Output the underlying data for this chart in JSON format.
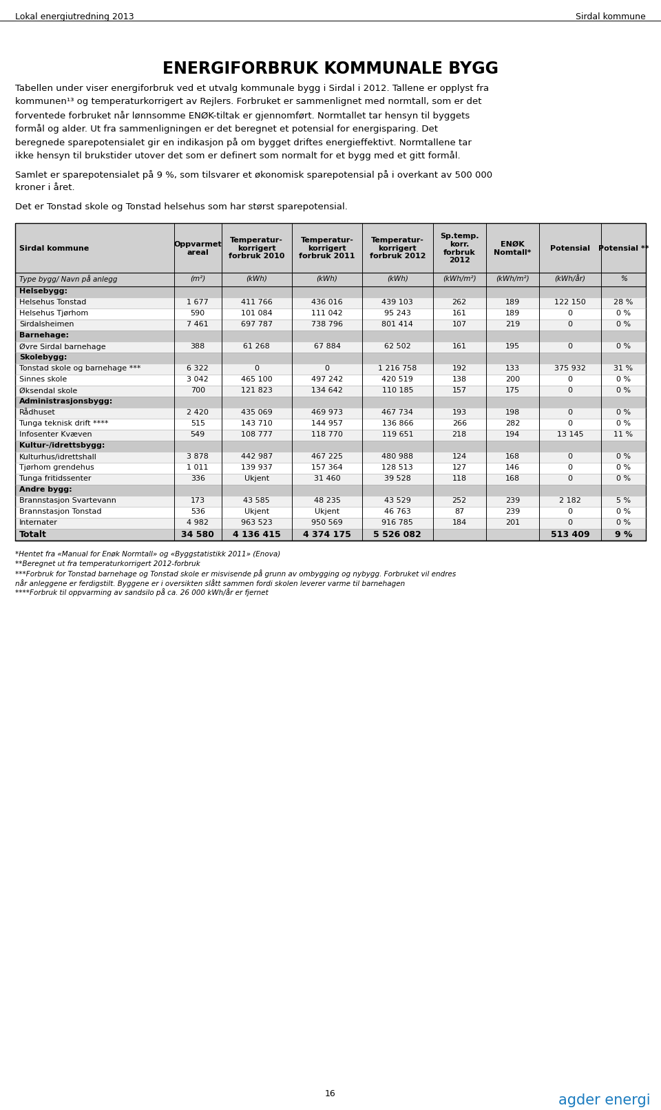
{
  "header_left": "Lokal energiutredning 2013",
  "header_right": "Sirdal kommune",
  "main_title": "ENERGIFORBRUK KOMMUNALE BYGG",
  "body_text_lines": [
    "Tabellen under viser energiforbruk ved et utvalg kommunale bygg i Sirdal i 2012. Tallene er opplyst fra",
    "kommunen¹³ og temperaturkorrigert av Rejlers. Forbruket er sammenlignet med normtall, som er det",
    "forventede forbruket når lønnsomme ENØK-tiltak er gjennomført. Normtallet tar hensyn til byggets",
    "formål og alder. Ut fra sammenligningen er det beregnet et potensial for energisparing. Det",
    "beregnede sparepotensialet gir en indikasjon på om bygget driftes energieffektivt. Normtallene tar",
    "ikke hensyn til brukstider utover det som er definert som normalt for et bygg med et gitt formål."
  ],
  "body_text2_lines": [
    "Samlet er sparepotensialet på 9 %, som tilsvarer et økonomisk sparepotensial på i overkant av 500 000",
    "kroner i året."
  ],
  "body_text3": "Det er Tonstad skole og Tonstad helsehus som har størst sparepotensial.",
  "col_headers_main": [
    "Sirdal kommune",
    "Oppvarmet\nareal",
    "Temperatur-\nkorrigert\nforbruk 2010",
    "Temperatur-\nkorrigert\nforbruk 2011",
    "Temperatur-\nkorrigert\nforbruk 2012",
    "Sp.temp.\nkorr.\nforbruk\n2012",
    "ENØK\nNomtall*",
    "Potensial",
    "Potensial **"
  ],
  "col_headers_sub": [
    "Type bygg/ Navn på anlegg",
    "(m²)",
    "(kWh)",
    "(kWh)",
    "(kWh)",
    "(kWh/m²)",
    "(kWh/m²)",
    "(kWh/år)",
    "%"
  ],
  "sections": [
    {
      "section_name": "Helsebygg:",
      "rows": [
        [
          "Helsehus Tonstad",
          "1 677",
          "411 766",
          "436 016",
          "439 103",
          "262",
          "189",
          "122 150",
          "28 %"
        ],
        [
          "Helsehus Tjørhom",
          "590",
          "101 084",
          "111 042",
          "95 243",
          "161",
          "189",
          "0",
          "0 %"
        ],
        [
          "Sirdalsheimen",
          "7 461",
          "697 787",
          "738 796",
          "801 414",
          "107",
          "219",
          "0",
          "0 %"
        ]
      ]
    },
    {
      "section_name": "Barnehage:",
      "rows": [
        [
          "Øvre Sirdal barnehage",
          "388",
          "61 268",
          "67 884",
          "62 502",
          "161",
          "195",
          "0",
          "0 %"
        ]
      ]
    },
    {
      "section_name": "Skolebygg:",
      "rows": [
        [
          "Tonstad skole og barnehage ***",
          "6 322",
          "0",
          "0",
          "1 216 758",
          "192",
          "133",
          "375 932",
          "31 %"
        ],
        [
          "Sinnes skole",
          "3 042",
          "465 100",
          "497 242",
          "420 519",
          "138",
          "200",
          "0",
          "0 %"
        ],
        [
          "Øksendal skole",
          "700",
          "121 823",
          "134 642",
          "110 185",
          "157",
          "175",
          "0",
          "0 %"
        ]
      ]
    },
    {
      "section_name": "Administrasjonsbygg:",
      "rows": [
        [
          "Rådhuset",
          "2 420",
          "435 069",
          "469 973",
          "467 734",
          "193",
          "198",
          "0",
          "0 %"
        ],
        [
          "Tunga teknisk drift ****",
          "515",
          "143 710",
          "144 957",
          "136 866",
          "266",
          "282",
          "0",
          "0 %"
        ],
        [
          "Infosenter Kvæven",
          "549",
          "108 777",
          "118 770",
          "119 651",
          "218",
          "194",
          "13 145",
          "11 %"
        ]
      ]
    },
    {
      "section_name": "Kultur-/idrettsbygg:",
      "rows": [
        [
          "Kulturhus/idrettshall",
          "3 878",
          "442 987",
          "467 225",
          "480 988",
          "124",
          "168",
          "0",
          "0 %"
        ],
        [
          "Tjørhom grendehus",
          "1 011",
          "139 937",
          "157 364",
          "128 513",
          "127",
          "146",
          "0",
          "0 %"
        ],
        [
          "Tunga fritidssenter",
          "336",
          "Ukjent",
          "31 460",
          "39 528",
          "118",
          "168",
          "0",
          "0 %"
        ]
      ]
    },
    {
      "section_name": "Andre bygg:",
      "rows": [
        [
          "Brannstasjon Svartevann",
          "173",
          "43 585",
          "48 235",
          "43 529",
          "252",
          "239",
          "2 182",
          "5 %"
        ],
        [
          "Brannstasjon Tonstad",
          "536",
          "Ukjent",
          "Ukjent",
          "46 763",
          "87",
          "239",
          "0",
          "0 %"
        ],
        [
          "Internater",
          "4 982",
          "963 523",
          "950 569",
          "916 785",
          "184",
          "201",
          "0",
          "0 %"
        ]
      ]
    }
  ],
  "total_row": [
    "Totalt",
    "34 580",
    "4 136 415",
    "4 374 175",
    "5 526 082",
    "",
    "",
    "513 409",
    "9 %"
  ],
  "footnotes": [
    "*Hentet fra «Manual for Enøk Normtall» og «Byggstatistikk 2011» (Enova)",
    "**Beregnet ut fra temperaturkorrigert 2012-forbruk",
    "***Forbruk for Tonstad barnehage og Tonstad skole er misvisende på grunn av ombygging og nybygg. Forbruket vil endres",
    "når anleggene er ferdigstilt. Byggene er i oversikten slått sammen fordi skolen leverer varme til barnehagen",
    "****Forbruk til oppvarming av sandsilo på ca. 26 000 kWh/år er fjernet"
  ],
  "page_number": "16",
  "logo_text": "agder energi",
  "logo_color": "#1a7bbf",
  "bg_color": "#ffffff",
  "table_header_bg": "#d0d0d0",
  "table_row_bg_even": "#f0f0f0",
  "table_row_bg_odd": "#ffffff",
  "section_bg": "#c8c8c8",
  "col_widths_rel": [
    185,
    55,
    82,
    82,
    82,
    62,
    62,
    72,
    52
  ]
}
